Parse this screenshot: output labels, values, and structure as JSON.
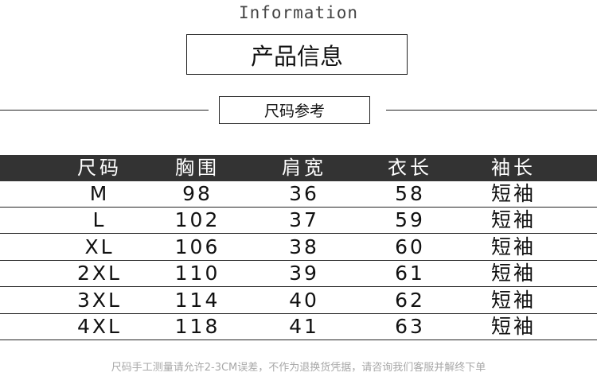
{
  "subtitle": "Information",
  "title": "产品信息",
  "section": "尺码参考",
  "table": {
    "headers": [
      "尺码",
      "胸围",
      "肩宽",
      "衣长",
      "袖长"
    ],
    "rows": [
      [
        "M",
        "98",
        "36",
        "58",
        "短袖"
      ],
      [
        "L",
        "102",
        "37",
        "59",
        "短袖"
      ],
      [
        "XL",
        "106",
        "38",
        "60",
        "短袖"
      ],
      [
        "2XL",
        "110",
        "39",
        "61",
        "短袖"
      ],
      [
        "3XL",
        "114",
        "40",
        "62",
        "短袖"
      ],
      [
        "4XL",
        "118",
        "41",
        "63",
        "短袖"
      ]
    ]
  },
  "note": "尺码手工测量请允许2-3CM误差，不作为退换货凭据，请咨询我们客服并解终下单"
}
